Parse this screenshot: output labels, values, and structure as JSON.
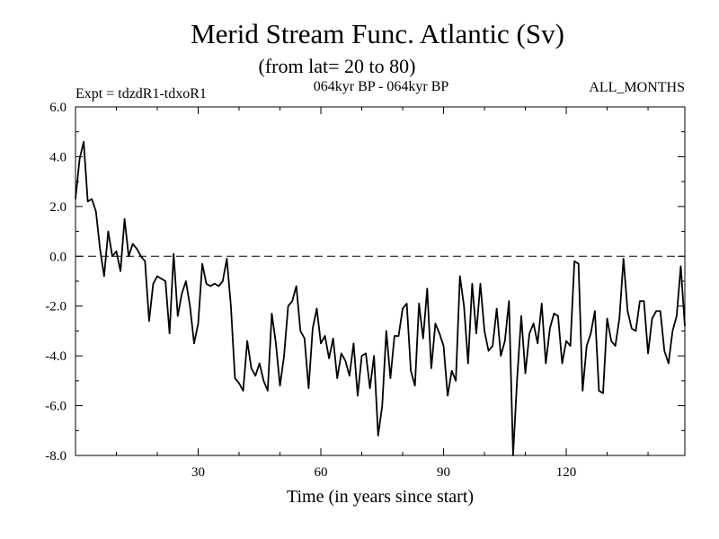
{
  "chart_data": {
    "type": "line",
    "title": "Merid Stream Func. Atlantic (Sv)",
    "subtitle": "(from lat= 20 to 80)",
    "header_left": "Expt = tdzdR1-tdxoR1",
    "header_center": "064kyr BP - 064kyr BP",
    "header_right": "ALL_MONTHS",
    "xlabel": "Time (in years since start)",
    "ylabel": "",
    "xlim": [
      0,
      149
    ],
    "ylim": [
      -8.0,
      6.0
    ],
    "xticks": [
      30,
      60,
      90,
      120
    ],
    "yticks": [
      6.0,
      4.0,
      2.0,
      0.0,
      -2.0,
      -4.0,
      -6.0,
      -8.0
    ],
    "ytick_labels": [
      "6.0",
      "4.0",
      "2.0",
      "0.0",
      "-2.0",
      "-4.0",
      "-6.0",
      "-8.0"
    ],
    "reference_line": {
      "y": 0.0,
      "style": "dashed"
    },
    "grid": false,
    "series": [
      {
        "name": "",
        "color": "#000000",
        "x": [
          0,
          1,
          2,
          3,
          4,
          5,
          6,
          7,
          8,
          9,
          10,
          11,
          12,
          13,
          14,
          15,
          16,
          17,
          18,
          19,
          20,
          21,
          22,
          23,
          24,
          25,
          26,
          27,
          28,
          29,
          30,
          31,
          32,
          33,
          34,
          35,
          36,
          37,
          38,
          39,
          40,
          41,
          42,
          43,
          44,
          45,
          46,
          47,
          48,
          49,
          50,
          51,
          52,
          53,
          54,
          55,
          56,
          57,
          58,
          59,
          60,
          61,
          62,
          63,
          64,
          65,
          66,
          67,
          68,
          69,
          70,
          71,
          72,
          73,
          74,
          75,
          76,
          77,
          78,
          79,
          80,
          81,
          82,
          83,
          84,
          85,
          86,
          87,
          88,
          89,
          90,
          91,
          92,
          93,
          94,
          95,
          96,
          97,
          98,
          99,
          100,
          101,
          102,
          103,
          104,
          105,
          106,
          107,
          108,
          109,
          110,
          111,
          112,
          113,
          114,
          115,
          116,
          117,
          118,
          119,
          120,
          121,
          122,
          123,
          124,
          125,
          126,
          127,
          128,
          129,
          130,
          131,
          132,
          133,
          134,
          135,
          136,
          137,
          138,
          139,
          140,
          141,
          142,
          143,
          144,
          145,
          146,
          147,
          148,
          149
        ],
        "y": [
          2.3,
          3.9,
          4.6,
          2.2,
          2.3,
          1.8,
          0.3,
          -0.8,
          1.0,
          0.0,
          0.2,
          -0.6,
          1.5,
          0.0,
          0.5,
          0.3,
          0.0,
          -0.2,
          -2.6,
          -1.1,
          -0.8,
          -0.9,
          -1.0,
          -3.1,
          0.1,
          -2.4,
          -1.5,
          -1.0,
          -2.0,
          -3.5,
          -2.7,
          -0.3,
          -1.1,
          -1.2,
          -1.1,
          -1.2,
          -1.0,
          -0.1,
          -2.0,
          -4.9,
          -5.1,
          -5.4,
          -3.4,
          -4.5,
          -4.8,
          -4.3,
          -5.0,
          -5.4,
          -2.3,
          -3.5,
          -5.2,
          -4.0,
          -2.0,
          -1.8,
          -1.2,
          -3.0,
          -3.3,
          -5.3,
          -2.9,
          -2.1,
          -3.5,
          -3.2,
          -4.1,
          -3.3,
          -4.9,
          -3.9,
          -4.2,
          -4.8,
          -3.5,
          -5.6,
          -4.0,
          -3.9,
          -5.3,
          -4.0,
          -7.2,
          -6.0,
          -3.0,
          -4.9,
          -3.2,
          -3.2,
          -2.1,
          -1.9,
          -4.6,
          -5.2,
          -1.9,
          -3.3,
          -1.3,
          -4.5,
          -2.7,
          -3.1,
          -3.6,
          -5.6,
          -4.6,
          -5.0,
          -0.8,
          -2.0,
          -4.3,
          -1.1,
          -3.1,
          -1.1,
          -3.0,
          -3.8,
          -3.6,
          -2.1,
          -4.0,
          -3.4,
          -1.8,
          -8.0,
          -4.9,
          -2.4,
          -4.7,
          -3.1,
          -2.7,
          -3.5,
          -1.9,
          -4.3,
          -2.9,
          -2.3,
          -2.4,
          -4.3,
          -3.4,
          -3.6,
          -0.2,
          -0.3,
          -5.4,
          -3.6,
          -3.1,
          -2.2,
          -5.4,
          -5.5,
          -2.5,
          -3.4,
          -3.6,
          -2.5,
          -0.1,
          -2.2,
          -2.9,
          -3.0,
          -1.8,
          -1.8,
          -3.9,
          -2.5,
          -2.2,
          -2.2,
          -3.8,
          -4.3,
          -3.0,
          -2.4,
          -0.4,
          -2.8
        ]
      }
    ]
  }
}
